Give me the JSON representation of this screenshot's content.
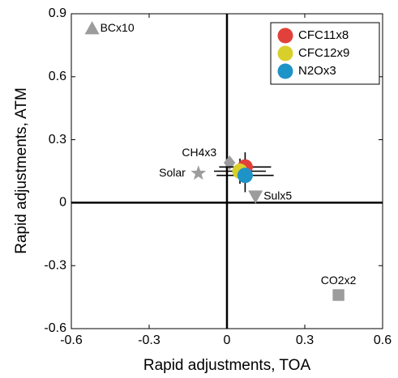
{
  "chart_data": {
    "type": "scatter",
    "x_label": "Rapid adjustments, TOA",
    "y_label": "Rapid adjustments, ATM",
    "xlim": [
      -0.6,
      0.6
    ],
    "ylim": [
      -0.6,
      0.9
    ],
    "xticks": [
      -0.6,
      -0.3,
      0,
      0.3,
      0.6
    ],
    "yticks": [
      -0.6,
      -0.3,
      0,
      0.3,
      0.6,
      0.9
    ],
    "zero_lines": true,
    "grid": false,
    "legend": "upper right",
    "series": [
      {
        "name": "CFC11x8",
        "color": "#e2403a",
        "x": [
          0.07
        ],
        "y": [
          0.17
        ],
        "xerr": [
          0.1
        ],
        "yerr": [
          0.07
        ]
      },
      {
        "name": "CFC12x9",
        "color": "#d9cf2b",
        "x": [
          0.05
        ],
        "y": [
          0.15
        ],
        "xerr": [
          0.1
        ],
        "yerr": [
          0.06
        ]
      },
      {
        "name": "N2Ox3",
        "color": "#1e93c8",
        "x": [
          0.07
        ],
        "y": [
          0.13
        ],
        "xerr": [
          0.11
        ],
        "yerr": [
          0.08
        ]
      }
    ],
    "annotated_points": [
      {
        "label": "BCx10",
        "marker": "triangle-up",
        "color": "#9c9c9c",
        "x": -0.52,
        "y": 0.83
      },
      {
        "label": "CO2x2",
        "marker": "square",
        "color": "#9c9c9c",
        "x": 0.43,
        "y": -0.44
      },
      {
        "label": "CH4x3",
        "marker": "diamond",
        "color": "#9c9c9c",
        "x": 0.01,
        "y": 0.19
      },
      {
        "label": "Solar",
        "marker": "star",
        "color": "#9c9c9c",
        "x": -0.11,
        "y": 0.14
      },
      {
        "label": "Sulx5",
        "marker": "triangle-down",
        "color": "#9c9c9c",
        "x": 0.11,
        "y": 0.03
      }
    ]
  }
}
